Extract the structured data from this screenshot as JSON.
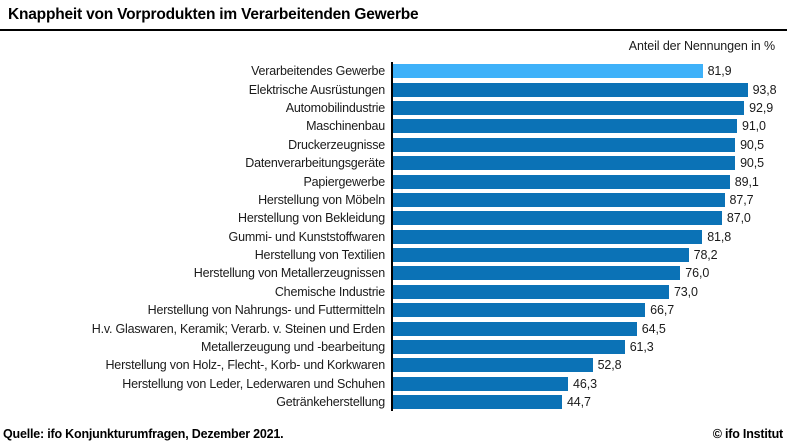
{
  "header": {
    "title": "Knappheit von Vorprodukten im Verarbeitenden Gewerbe",
    "subtitle": "Anteil der Nennungen in %"
  },
  "footer": {
    "source": "Quelle: ifo Konjunkturumfragen, Dezember 2021.",
    "copyright": "© ifo Institut"
  },
  "colors": {
    "bar_default": "#0b72b6",
    "bar_highlight": "#3eb1f9",
    "axis": "#000000",
    "text": "#1a1a1a"
  },
  "chart_data": {
    "type": "bar",
    "orientation": "horizontal",
    "title": "Knappheit von Vorprodukten im Verarbeitenden Gewerbe",
    "xlabel": "Anteil der Nennungen in %",
    "unit": "%",
    "xlim": [
      0,
      100
    ],
    "grid": false,
    "legend": "none",
    "highlight_index": 0,
    "categories": [
      "Verarbeitendes Gewerbe",
      "Elektrische Ausrüstungen",
      "Automobilindustrie",
      "Maschinenbau",
      "Druckerzeugnisse",
      "Datenverarbeitungsgeräte",
      "Papiergewerbe",
      "Herstellung von Möbeln",
      "Herstellung von Bekleidung",
      "Gummi- und Kunststoffwaren",
      "Herstellung von Textilien",
      "Herstellung von Metallerzeugnissen",
      "Chemische Industrie",
      "Herstellung von Nahrungs- und Futtermitteln",
      "H.v. Glaswaren, Keramik; Verarb. v. Steinen und Erden",
      "Metallerzeugung und -bearbeitung",
      "Herstellung von Holz-, Flecht-, Korb- und Korkwaren",
      "Herstellung von Leder, Lederwaren und Schuhen",
      "Getränkeherstellung"
    ],
    "values": [
      81.9,
      93.8,
      92.9,
      91.0,
      90.5,
      90.5,
      89.1,
      87.7,
      87.0,
      81.8,
      78.2,
      76.0,
      73.0,
      66.7,
      64.5,
      61.3,
      52.8,
      46.3,
      44.7
    ],
    "value_labels": [
      "81,9",
      "93,8",
      "92,9",
      "91,0",
      "90,5",
      "90,5",
      "89,1",
      "87,7",
      "87,0",
      "81,8",
      "78,2",
      "76,0",
      "73,0",
      "66,7",
      "64,5",
      "61,3",
      "52,8",
      "46,3",
      "44,7"
    ]
  }
}
